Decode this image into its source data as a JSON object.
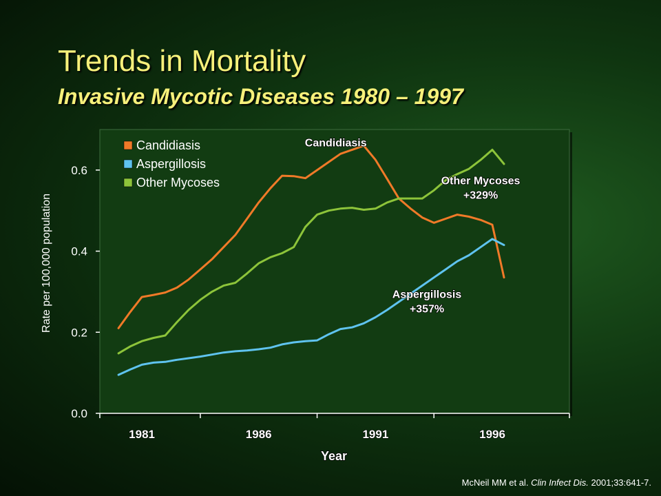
{
  "slide": {
    "title": "Trends in Mortality",
    "subtitle": "Invasive Mycotic Diseases 1980 – 1997",
    "citation": {
      "authors": "McNeil MM et al.",
      "journal": "Clin Infect Dis.",
      "details": "2001;33:641-7."
    }
  },
  "colors": {
    "title": "#f6f07a",
    "plot_background": "#123c12",
    "candidiasis": "#f07a28",
    "aspergillosis": "#5fc3ef",
    "other_mycoses": "#8dc43a"
  },
  "chart_data": {
    "type": "line",
    "xlabel": "Year",
    "ylabel": "Rate per 100,000 population",
    "xlim": [
      1979.2,
      1999.3
    ],
    "ylim": [
      0,
      0.7
    ],
    "xticks": [
      1981,
      1986,
      1991,
      1996
    ],
    "yticks": [
      0.0,
      0.2,
      0.4,
      0.6
    ],
    "ytick_labels": [
      "0.0",
      "0.2",
      "0.4",
      "0.6"
    ],
    "grid": false,
    "legend_position": "top-left",
    "series": [
      {
        "name": "Candidiasis",
        "color": "#f07a28",
        "x": [
          1980,
          1980.5,
          1981,
          1981.5,
          1982,
          1982.5,
          1983,
          1983.5,
          1984,
          1984.5,
          1985,
          1985.5,
          1986,
          1986.5,
          1987,
          1987.5,
          1988,
          1988.5,
          1989,
          1989.5,
          1990,
          1990.5,
          1991,
          1991.5,
          1992,
          1992.5,
          1993,
          1993.5,
          1994,
          1994.5,
          1995,
          1995.5,
          1996,
          1996.5
        ],
        "y": [
          0.21,
          0.25,
          0.287,
          0.292,
          0.298,
          0.31,
          0.33,
          0.355,
          0.38,
          0.41,
          0.44,
          0.48,
          0.52,
          0.555,
          0.586,
          0.585,
          0.58,
          0.6,
          0.62,
          0.64,
          0.65,
          0.66,
          0.625,
          0.578,
          0.53,
          0.505,
          0.483,
          0.47,
          0.48,
          0.49,
          0.485,
          0.477,
          0.465,
          0.335
        ]
      },
      {
        "name": "Aspergillosis",
        "color": "#5fc3ef",
        "x": [
          1980,
          1980.5,
          1981,
          1981.5,
          1982,
          1982.5,
          1983,
          1983.5,
          1984,
          1984.5,
          1985,
          1985.5,
          1986,
          1986.5,
          1987,
          1987.5,
          1988,
          1988.5,
          1989,
          1989.5,
          1990,
          1990.5,
          1991,
          1991.5,
          1992,
          1992.5,
          1993,
          1993.5,
          1994,
          1994.5,
          1995,
          1995.5,
          1996,
          1996.5
        ],
        "y": [
          0.095,
          0.108,
          0.12,
          0.125,
          0.127,
          0.132,
          0.136,
          0.14,
          0.145,
          0.15,
          0.153,
          0.155,
          0.158,
          0.162,
          0.17,
          0.175,
          0.178,
          0.18,
          0.195,
          0.208,
          0.212,
          0.222,
          0.237,
          0.255,
          0.275,
          0.295,
          0.315,
          0.335,
          0.355,
          0.375,
          0.39,
          0.41,
          0.43,
          0.415
        ]
      },
      {
        "name": "Other Mycoses",
        "color": "#8dc43a",
        "x": [
          1980,
          1980.5,
          1981,
          1981.5,
          1982,
          1982.5,
          1983,
          1983.5,
          1984,
          1984.5,
          1985,
          1985.5,
          1986,
          1986.5,
          1987,
          1987.5,
          1988,
          1988.5,
          1989,
          1989.5,
          1990,
          1990.5,
          1991,
          1991.5,
          1992,
          1992.5,
          1993,
          1993.5,
          1994,
          1994.5,
          1995,
          1995.5,
          1996,
          1996.5
        ],
        "y": [
          0.148,
          0.165,
          0.178,
          0.186,
          0.192,
          0.225,
          0.255,
          0.28,
          0.3,
          0.315,
          0.322,
          0.345,
          0.37,
          0.385,
          0.395,
          0.41,
          0.46,
          0.49,
          0.5,
          0.505,
          0.507,
          0.502,
          0.505,
          0.52,
          0.53,
          0.53,
          0.53,
          0.55,
          0.575,
          0.59,
          0.603,
          0.625,
          0.65,
          0.615
        ]
      }
    ],
    "annotations": [
      {
        "text": "Candidiasis",
        "x": 1989.3,
        "y": 0.658
      },
      {
        "text": "Other Mycoses",
        "line2": "+329%",
        "x": 1995.5,
        "y": 0.565
      },
      {
        "text": "Aspergillosis",
        "line2": "+357%",
        "x": 1993.2,
        "y": 0.285
      }
    ]
  }
}
